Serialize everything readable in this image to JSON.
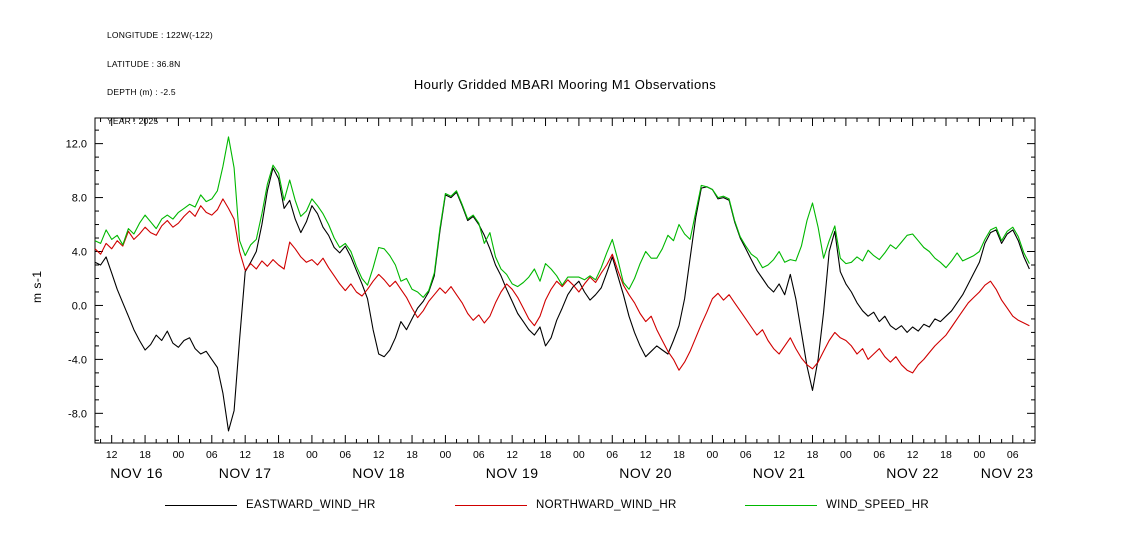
{
  "header": {
    "meta_lines": [
      "LONGITUDE : 122W(-122)",
      "LATITUDE : 36.8N",
      "DEPTH (m) : -2.5",
      "YEAR : 2025"
    ]
  },
  "title": "Hourly Gridded MBARI Mooring M1 Observations",
  "chart_data": {
    "type": "line",
    "title": "Hourly Gridded MBARI Mooring M1 Observations",
    "xlabel": "",
    "ylabel": "m s-1",
    "grid": false,
    "legend_position": "bottom",
    "ylim": [
      -10.2,
      13.9
    ],
    "xlim_hours": [
      9,
      178
    ],
    "start_date": "NOV 16 2025",
    "start_hour": 9,
    "x_step_hours": 1,
    "y_ticks": [
      -8,
      -4,
      0,
      4,
      8,
      12
    ],
    "y_tick_labels": [
      "-8.0",
      "-4.0",
      "0.0",
      "4.0",
      "8.0",
      "12.0"
    ],
    "x_tick_start_hour": 12,
    "x_tick_step_hours": 6,
    "x_minor_tick_step_hours": 2,
    "x_tick_labels": [
      "12",
      "18",
      "00",
      "06",
      "12",
      "18",
      "00",
      "06",
      "12",
      "18",
      "00",
      "06",
      "12",
      "18",
      "00",
      "06",
      "12",
      "18",
      "00",
      "06",
      "12",
      "18",
      "00",
      "06",
      "12",
      "18",
      "00",
      "06"
    ],
    "date_labels": [
      {
        "label": "NOV 16",
        "hour": 16.5
      },
      {
        "label": "NOV 17",
        "hour": 36
      },
      {
        "label": "NOV 18",
        "hour": 60
      },
      {
        "label": "NOV 19",
        "hour": 84
      },
      {
        "label": "NOV 20",
        "hour": 108
      },
      {
        "label": "NOV 21",
        "hour": 132
      },
      {
        "label": "NOV 22",
        "hour": 156
      },
      {
        "label": "NOV 23",
        "hour": 173
      }
    ],
    "series": [
      {
        "name": "EASTWARD_WIND_HR",
        "color": "#000000",
        "values": [
          3.2,
          3.0,
          3.6,
          2.4,
          1.2,
          0.2,
          -0.8,
          -1.8,
          -2.6,
          -3.3,
          -2.9,
          -2.2,
          -2.6,
          -1.9,
          -2.8,
          -3.1,
          -2.6,
          -2.4,
          -3.2,
          -3.6,
          -3.4,
          -4.0,
          -4.6,
          -6.5,
          -9.3,
          -7.8,
          -2.5,
          2.5,
          3.2,
          4.0,
          6.0,
          8.5,
          10.2,
          9.4,
          7.2,
          7.8,
          6.4,
          5.4,
          6.2,
          7.4,
          6.8,
          5.8,
          5.2,
          4.3,
          3.9,
          4.4,
          3.6,
          2.6,
          1.6,
          0.5,
          -1.8,
          -3.6,
          -3.8,
          -3.3,
          -2.4,
          -1.2,
          -1.8,
          -1.0,
          -0.2,
          0.3,
          1.0,
          2.2,
          5.5,
          8.2,
          8.0,
          8.4,
          7.4,
          6.3,
          6.6,
          6.0,
          5.2,
          4.2,
          3.0,
          2.2,
          1.2,
          0.3,
          -0.6,
          -1.2,
          -1.8,
          -2.2,
          -1.6,
          -3.0,
          -2.4,
          -1.1,
          -0.2,
          0.8,
          1.4,
          1.8,
          1.0,
          0.4,
          0.8,
          1.3,
          2.4,
          3.6,
          2.2,
          0.8,
          -0.8,
          -2.0,
          -3.0,
          -3.8,
          -3.4,
          -3.0,
          -3.3,
          -3.6,
          -2.6,
          -1.5,
          0.5,
          3.5,
          6.5,
          8.7,
          8.8,
          8.6,
          7.9,
          8.0,
          7.8,
          6.2,
          5.0,
          4.2,
          3.4,
          2.6,
          2.0,
          1.4,
          1.0,
          1.6,
          0.8,
          2.3,
          0.5,
          -2.0,
          -4.5,
          -6.3,
          -4.0,
          -0.5,
          4.0,
          5.5,
          2.5,
          1.6,
          1.0,
          0.2,
          -0.4,
          -0.8,
          -0.5,
          -1.2,
          -0.8,
          -1.5,
          -1.8,
          -1.5,
          -2.0,
          -1.6,
          -1.9,
          -1.4,
          -1.6,
          -1.0,
          -1.2,
          -0.8,
          -0.4,
          0.2,
          0.8,
          1.6,
          2.4,
          3.2,
          4.6,
          5.4,
          5.6,
          4.6,
          5.3,
          5.6,
          4.8,
          3.6,
          2.7
        ]
      },
      {
        "name": "NORTHWARD_WIND_HR",
        "color": "#d00000",
        "values": [
          4.2,
          3.8,
          4.6,
          4.2,
          4.8,
          4.4,
          5.5,
          4.9,
          5.3,
          5.8,
          5.4,
          5.2,
          5.9,
          6.3,
          5.8,
          6.1,
          6.6,
          7.0,
          6.6,
          7.4,
          6.9,
          6.7,
          7.1,
          7.9,
          7.2,
          6.4,
          4.0,
          2.6,
          3.1,
          2.7,
          3.3,
          2.9,
          3.4,
          3.0,
          2.7,
          4.7,
          4.2,
          3.6,
          3.2,
          3.4,
          3.0,
          3.5,
          2.8,
          2.2,
          1.6,
          1.1,
          1.6,
          1.0,
          0.7,
          1.2,
          1.8,
          2.3,
          1.9,
          1.4,
          1.8,
          1.2,
          0.6,
          -0.2,
          -0.9,
          -0.4,
          0.3,
          0.8,
          1.3,
          0.9,
          1.4,
          0.8,
          0.2,
          -0.6,
          -1.1,
          -0.7,
          -1.3,
          -0.8,
          0.2,
          1.0,
          1.6,
          1.2,
          0.6,
          -0.2,
          -1.0,
          -1.5,
          -0.8,
          0.4,
          1.2,
          1.8,
          1.4,
          1.9,
          1.5,
          1.0,
          1.6,
          2.1,
          1.7,
          2.4,
          3.0,
          3.8,
          2.6,
          1.5,
          0.8,
          0.2,
          -0.6,
          -1.2,
          -0.8,
          -1.8,
          -2.6,
          -3.4,
          -4.0,
          -4.8,
          -4.2,
          -3.4,
          -2.4,
          -1.4,
          -0.5,
          0.5,
          0.9,
          0.4,
          0.8,
          0.2,
          -0.4,
          -1.0,
          -1.6,
          -2.2,
          -1.8,
          -2.6,
          -3.2,
          -3.6,
          -3.0,
          -2.4,
          -3.2,
          -3.9,
          -4.4,
          -4.7,
          -4.2,
          -3.4,
          -2.6,
          -2.0,
          -2.4,
          -2.6,
          -3.0,
          -3.6,
          -3.2,
          -4.0,
          -3.6,
          -3.2,
          -3.8,
          -4.2,
          -3.8,
          -4.4,
          -4.8,
          -5.0,
          -4.4,
          -4.0,
          -3.5,
          -3.0,
          -2.6,
          -2.2,
          -1.6,
          -1.0,
          -0.4,
          0.2,
          0.6,
          1.0,
          1.5,
          1.8,
          1.2,
          0.4,
          -0.2,
          -0.8,
          -1.1,
          -1.3,
          -1.5
        ]
      },
      {
        "name": "WIND_SPEED_HR",
        "color": "#00b800",
        "values": [
          4.8,
          4.6,
          5.6,
          4.9,
          5.2,
          4.5,
          5.7,
          5.3,
          6.1,
          6.7,
          6.2,
          5.7,
          6.4,
          6.7,
          6.4,
          6.9,
          7.2,
          7.5,
          7.3,
          8.2,
          7.7,
          7.9,
          8.5,
          10.3,
          12.5,
          10.2,
          4.8,
          3.7,
          4.5,
          4.9,
          6.8,
          9.0,
          10.4,
          9.8,
          7.8,
          9.3,
          7.8,
          6.6,
          7.0,
          7.9,
          7.4,
          6.8,
          6.0,
          5.0,
          4.3,
          4.6,
          4.0,
          2.9,
          2.0,
          1.5,
          2.8,
          4.3,
          4.2,
          3.7,
          3.0,
          1.8,
          2.0,
          1.2,
          1.0,
          0.6,
          1.1,
          2.4,
          5.7,
          8.3,
          8.1,
          8.5,
          7.5,
          6.4,
          6.7,
          6.1,
          4.6,
          5.4,
          3.6,
          2.7,
          2.3,
          1.6,
          1.4,
          1.7,
          2.1,
          2.7,
          1.8,
          3.1,
          2.7,
          2.2,
          1.5,
          2.1,
          2.1,
          2.1,
          1.9,
          2.2,
          1.9,
          2.8,
          3.9,
          4.9,
          3.4,
          1.7,
          1.2,
          2.0,
          3.1,
          4.0,
          3.5,
          3.5,
          4.2,
          5.2,
          4.8,
          6.0,
          5.3,
          4.9,
          6.9,
          8.9,
          8.8,
          8.6,
          8.0,
          8.1,
          7.9,
          6.3,
          5.1,
          4.4,
          3.8,
          3.5,
          2.8,
          3.0,
          3.4,
          4.0,
          3.2,
          3.4,
          3.3,
          4.4,
          6.3,
          7.6,
          5.8,
          3.5,
          4.8,
          5.9,
          3.5,
          3.1,
          3.2,
          3.6,
          3.3,
          4.1,
          3.7,
          3.4,
          3.9,
          4.5,
          4.2,
          4.7,
          5.2,
          5.3,
          4.8,
          4.3,
          4.0,
          3.5,
          3.2,
          2.8,
          3.3,
          3.9,
          3.3,
          3.5,
          3.7,
          4.0,
          4.9,
          5.6,
          5.8,
          4.8,
          5.5,
          5.8,
          5.1,
          3.9,
          3.1
        ]
      }
    ]
  },
  "legend": {
    "items": [
      {
        "label": "EASTWARD_WIND_HR",
        "color": "#000000"
      },
      {
        "label": "NORTHWARD_WIND_HR",
        "color": "#d00000"
      },
      {
        "label": "WIND_SPEED_HR",
        "color": "#00b800"
      }
    ]
  }
}
